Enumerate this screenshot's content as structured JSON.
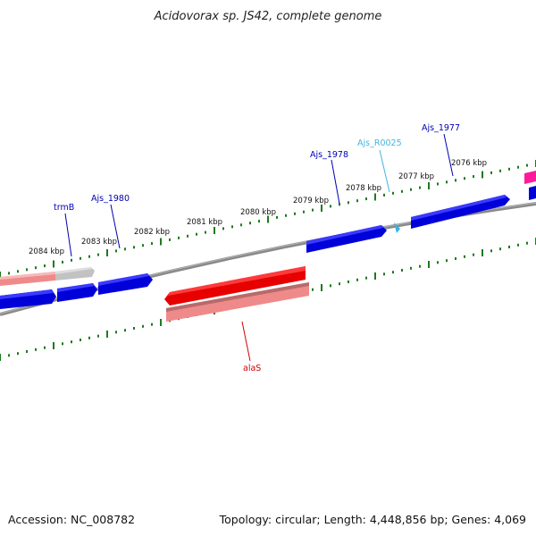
{
  "title": "Acidovorax sp. JS42, complete genome",
  "footer": {
    "accession": "Accession: NC_008782",
    "summary": "Topology: circular; Length: 4,448,856 bp; Genes: 4,069"
  },
  "colors": {
    "backbone": "#7f7f7f",
    "tick": "#1e7a1e",
    "cds_forward": "#0000e0",
    "cds_reverse": "#f08080",
    "rrna": "#ff0000",
    "trna": "#3fb6e0",
    "other": "#ff1493",
    "pseudo": "#bdbdbd"
  },
  "kbp_labels": [
    "2084 kbp",
    "2083 kbp",
    "2082 kbp",
    "2081 kbp",
    "2080 kbp",
    "2079 kbp",
    "2078 kbp",
    "2077 kbp",
    "2076 kbp"
  ],
  "gene_labels": {
    "trmB": "trmB",
    "ajs_1980": "Ajs_1980",
    "ajs_1978": "Ajs_1978",
    "ajs_r0025": "Ajs_R0025",
    "ajs_1977": "Ajs_1977",
    "alaS": "alaS"
  },
  "label_colors": {
    "trmB": "#0000b0",
    "ajs_1980": "#0000b0",
    "ajs_1978": "#0000b0",
    "ajs_r0025": "#3fb6e0",
    "ajs_1977": "#0000b0",
    "alaS": "#d00000"
  }
}
